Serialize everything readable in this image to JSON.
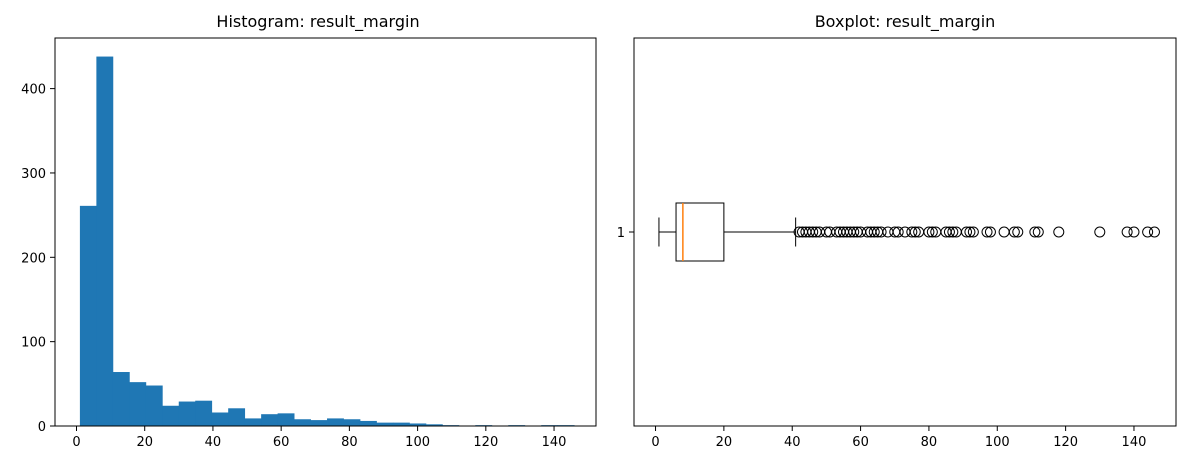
{
  "chart_data": [
    {
      "type": "histogram",
      "title": "Histogram: result_margin",
      "xlabel": "",
      "ylabel": "",
      "xlim": [
        -6.3,
        152.3
      ],
      "ylim": [
        0,
        460
      ],
      "xticks": [
        0,
        20,
        40,
        60,
        80,
        100,
        120,
        140
      ],
      "yticks": [
        0,
        100,
        200,
        300,
        400
      ],
      "bin_start": 1,
      "bin_width": 4.83,
      "counts": [
        261,
        438,
        64,
        52,
        48,
        24,
        29,
        30,
        16,
        21,
        9,
        14,
        15,
        8,
        7,
        9,
        8,
        6,
        4,
        4,
        3,
        2,
        1,
        0,
        1,
        0,
        1,
        0,
        1,
        1
      ],
      "bar_color": "#1f77b4",
      "grid": false
    },
    {
      "type": "boxplot",
      "title": "Boxplot: result_margin",
      "orientation": "horizontal",
      "category_label": "1",
      "xlim": [
        -6.3,
        152.3
      ],
      "xticks": [
        0,
        20,
        40,
        60,
        80,
        100,
        120,
        140
      ],
      "whisker_low": 1,
      "q1": 6,
      "median": 8,
      "q3": 20,
      "whisker_high": 41,
      "outliers": [
        42,
        43,
        44,
        45,
        46,
        47,
        48,
        50,
        51,
        53,
        54,
        55,
        56,
        57,
        58,
        59,
        60,
        62,
        63,
        64,
        65,
        66,
        68,
        70,
        71,
        73,
        75,
        76,
        77,
        80,
        81,
        82,
        85,
        86,
        87,
        88,
        91,
        92,
        93,
        97,
        98,
        102,
        105,
        106,
        111,
        112,
        118,
        130,
        138,
        140,
        144,
        146
      ],
      "median_color": "#ff7f0e",
      "grid": false
    }
  ]
}
